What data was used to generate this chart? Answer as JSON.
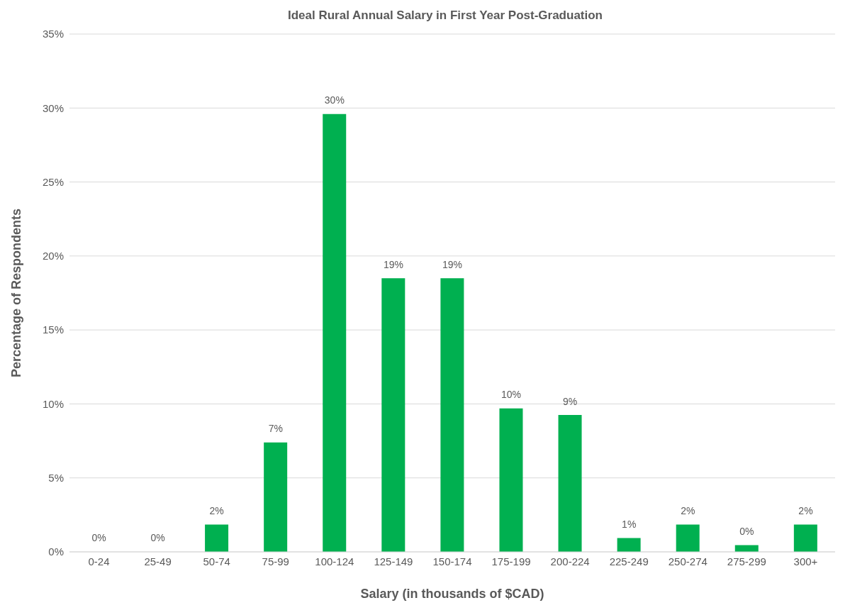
{
  "chart_data": {
    "type": "bar",
    "title": "Ideal Rural Annual Salary in First Year Post-Graduation",
    "xlabel": "Salary (in thousands of $CAD)",
    "ylabel": "Percentage of Respondents",
    "categories": [
      "0-24",
      "25-49",
      "50-74",
      "75-99",
      "100-124",
      "125-149",
      "150-174",
      "175-199",
      "200-224",
      "225-249",
      "250-274",
      "275-299",
      "300+"
    ],
    "values": [
      0,
      0,
      1.85,
      7.4,
      29.6,
      18.5,
      18.5,
      9.7,
      9.25,
      0.93,
      1.85,
      0.46,
      1.85
    ],
    "value_labels": [
      "0%",
      "0%",
      "2%",
      "7%",
      "30%",
      "19%",
      "19%",
      "10%",
      "9%",
      "1%",
      "2%",
      "0%",
      "2%"
    ],
    "color": "#00b050",
    "ylim": [
      0,
      35
    ],
    "yticks": [
      {
        "value": 0,
        "label": "0%"
      },
      {
        "value": 5,
        "label": "5%"
      },
      {
        "value": 10,
        "label": "10%"
      },
      {
        "value": 15,
        "label": "15%"
      },
      {
        "value": 20,
        "label": "20%"
      },
      {
        "value": 25,
        "label": "25%"
      },
      {
        "value": 30,
        "label": "30%"
      },
      {
        "value": 35,
        "label": "35%"
      }
    ],
    "grid": "y"
  }
}
